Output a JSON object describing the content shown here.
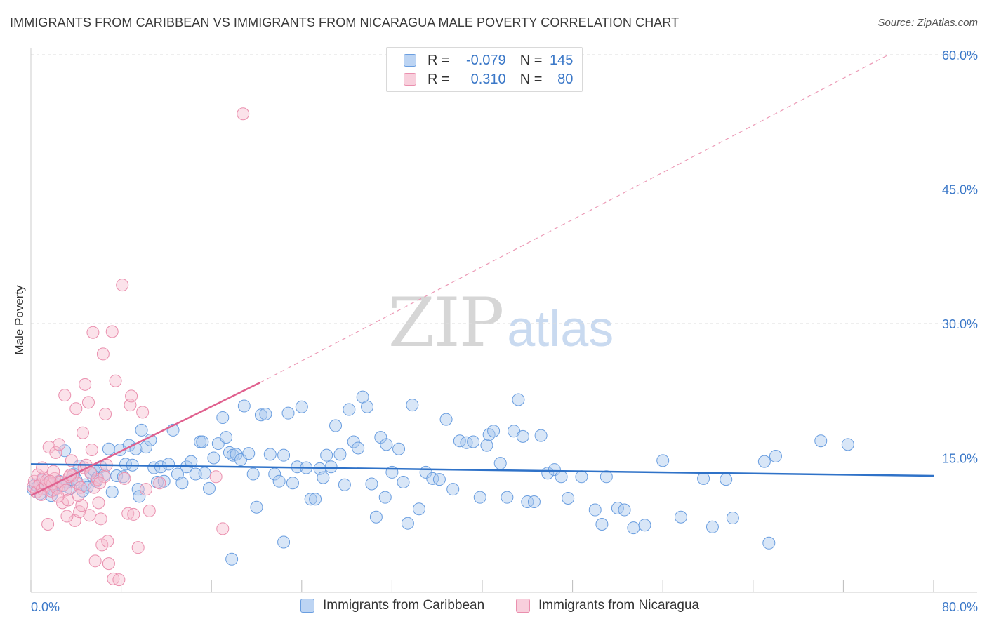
{
  "title": "IMMIGRANTS FROM CARIBBEAN VS IMMIGRANTS FROM NICARAGUA MALE POVERTY CORRELATION CHART",
  "source": "Source: ZipAtlas.com",
  "watermark": {
    "zip": "ZIP",
    "atlas": "atlas"
  },
  "legend": {
    "rows": [
      {
        "r_label": "R =",
        "r_value": "-0.079",
        "n_label": "N =",
        "n_value": "145"
      },
      {
        "r_label": "R =",
        "r_value": "0.310",
        "n_label": "N =",
        "n_value": "80"
      }
    ]
  },
  "bottom_legend": {
    "caribbean": "Immigrants from Caribbean",
    "nicaragua": "Immigrants from Nicaragua"
  },
  "colors": {
    "caribbean_fill": "#a9c8ee",
    "caribbean_stroke": "#6a9ee0",
    "caribbean_line": "#2f72c8",
    "nicaragua_fill": "#f6bfd0",
    "nicaragua_stroke": "#ea8fae",
    "nicaragua_line": "#e0608e",
    "axis_text": "#3b78c8",
    "grid": "#dddddd"
  },
  "chart_data": {
    "type": "scatter",
    "ylabel": "Male Poverty",
    "xlim": [
      0,
      80
    ],
    "ylim": [
      0,
      60
    ],
    "x_tick_labels": [
      "0.0%",
      "80.0%"
    ],
    "y_ticks": [
      15,
      30,
      45,
      60
    ],
    "y_tick_labels": [
      "15.0%",
      "30.0%",
      "45.0%",
      "60.0%"
    ],
    "x_minor_ticks": [
      0,
      8,
      16,
      24,
      32,
      40,
      48,
      56,
      64,
      72,
      80
    ],
    "series": [
      {
        "name": "Immigrants from Caribbean",
        "r": -0.079,
        "n": 145,
        "trend": {
          "x0": 0,
          "y0": 14.3,
          "x1": 80,
          "y1": 13.0
        },
        "points": [
          [
            0.2,
            11.5
          ],
          [
            0.4,
            12.0
          ],
          [
            0.6,
            11.8
          ],
          [
            0.8,
            11.0
          ],
          [
            1.0,
            12.5
          ],
          [
            1.2,
            11.6
          ],
          [
            1.5,
            12.2
          ],
          [
            1.8,
            10.8
          ],
          [
            2.0,
            11.4
          ],
          [
            2.2,
            12.1
          ],
          [
            2.5,
            12.4
          ],
          [
            2.8,
            11.9
          ],
          [
            3.0,
            15.8
          ],
          [
            3.2,
            12.3
          ],
          [
            3.5,
            11.6
          ],
          [
            3.8,
            13.2
          ],
          [
            4.0,
            12.6
          ],
          [
            4.3,
            14.1
          ],
          [
            4.6,
            11.3
          ],
          [
            4.8,
            12.0
          ],
          [
            5.0,
            11.7
          ],
          [
            5.3,
            13.4
          ],
          [
            5.6,
            13.6
          ],
          [
            5.9,
            12.8
          ],
          [
            6.2,
            14.0
          ],
          [
            6.5,
            13.1
          ],
          [
            6.9,
            16.0
          ],
          [
            7.2,
            11.2
          ],
          [
            7.6,
            13.0
          ],
          [
            7.9,
            15.9
          ],
          [
            8.2,
            12.9
          ],
          [
            8.4,
            14.3
          ],
          [
            8.7,
            16.4
          ],
          [
            9.0,
            14.2
          ],
          [
            9.3,
            16.0
          ],
          [
            9.5,
            11.5
          ],
          [
            9.8,
            18.1
          ],
          [
            10.2,
            16.2
          ],
          [
            10.6,
            17.0
          ],
          [
            10.9,
            13.9
          ],
          [
            11.2,
            12.3
          ],
          [
            11.5,
            14.0
          ],
          [
            11.8,
            12.4
          ],
          [
            12.2,
            14.3
          ],
          [
            12.6,
            18.1
          ],
          [
            13.0,
            13.2
          ],
          [
            13.4,
            12.2
          ],
          [
            13.8,
            14.0
          ],
          [
            14.2,
            14.6
          ],
          [
            14.6,
            13.2
          ],
          [
            15.0,
            16.8
          ],
          [
            15.4,
            13.3
          ],
          [
            15.8,
            11.6
          ],
          [
            16.2,
            15.0
          ],
          [
            16.6,
            16.6
          ],
          [
            17.0,
            19.5
          ],
          [
            17.3,
            17.3
          ],
          [
            17.6,
            15.6
          ],
          [
            17.9,
            15.3
          ],
          [
            18.2,
            15.4
          ],
          [
            18.6,
            14.8
          ],
          [
            18.9,
            20.8
          ],
          [
            19.3,
            15.5
          ],
          [
            19.7,
            13.2
          ],
          [
            20.0,
            9.5
          ],
          [
            20.4,
            19.8
          ],
          [
            20.8,
            19.9
          ],
          [
            21.2,
            15.4
          ],
          [
            21.6,
            13.2
          ],
          [
            22.0,
            12.4
          ],
          [
            22.4,
            15.3
          ],
          [
            22.8,
            20.0
          ],
          [
            23.2,
            12.2
          ],
          [
            23.6,
            14.0
          ],
          [
            24.0,
            20.7
          ],
          [
            24.4,
            13.9
          ],
          [
            24.8,
            10.4
          ],
          [
            25.2,
            10.4
          ],
          [
            25.6,
            13.8
          ],
          [
            25.9,
            12.8
          ],
          [
            26.2,
            15.3
          ],
          [
            26.6,
            14.0
          ],
          [
            27.0,
            18.6
          ],
          [
            27.4,
            15.4
          ],
          [
            27.8,
            12.0
          ],
          [
            28.2,
            20.4
          ],
          [
            28.6,
            16.8
          ],
          [
            29.0,
            16.1
          ],
          [
            29.4,
            21.8
          ],
          [
            29.8,
            20.7
          ],
          [
            30.2,
            12.1
          ],
          [
            30.6,
            8.4
          ],
          [
            31.0,
            17.3
          ],
          [
            31.5,
            16.5
          ],
          [
            32.0,
            13.4
          ],
          [
            32.6,
            16.0
          ],
          [
            33.0,
            12.3
          ],
          [
            33.4,
            7.7
          ],
          [
            33.8,
            20.9
          ],
          [
            34.4,
            9.3
          ],
          [
            35.0,
            13.4
          ],
          [
            35.6,
            12.7
          ],
          [
            36.2,
            12.6
          ],
          [
            36.8,
            19.3
          ],
          [
            37.4,
            11.5
          ],
          [
            38.0,
            16.9
          ],
          [
            38.6,
            16.7
          ],
          [
            39.2,
            16.8
          ],
          [
            39.8,
            10.6
          ],
          [
            40.4,
            16.4
          ],
          [
            40.6,
            17.6
          ],
          [
            41.0,
            18.0
          ],
          [
            41.6,
            14.4
          ],
          [
            42.2,
            10.6
          ],
          [
            42.8,
            18.0
          ],
          [
            43.2,
            21.5
          ],
          [
            43.6,
            17.4
          ],
          [
            44.0,
            10.1
          ],
          [
            44.6,
            10.1
          ],
          [
            45.2,
            17.5
          ],
          [
            45.8,
            13.3
          ],
          [
            46.4,
            13.7
          ],
          [
            47.0,
            12.9
          ],
          [
            47.6,
            10.5
          ],
          [
            48.8,
            12.9
          ],
          [
            50.0,
            9.2
          ],
          [
            50.6,
            7.6
          ],
          [
            51.0,
            12.9
          ],
          [
            52.0,
            9.4
          ],
          [
            52.6,
            9.2
          ],
          [
            53.4,
            7.2
          ],
          [
            54.4,
            7.5
          ],
          [
            56.0,
            14.7
          ],
          [
            57.6,
            8.4
          ],
          [
            59.6,
            12.7
          ],
          [
            60.4,
            7.3
          ],
          [
            61.6,
            12.6
          ],
          [
            62.2,
            8.3
          ],
          [
            65.0,
            14.6
          ],
          [
            65.4,
            5.5
          ],
          [
            66.0,
            15.2
          ],
          [
            70.0,
            16.9
          ],
          [
            72.4,
            16.5
          ],
          [
            17.8,
            3.7
          ],
          [
            22.4,
            5.6
          ],
          [
            9.6,
            10.7
          ],
          [
            3.6,
            12.6
          ],
          [
            5.8,
            12.4
          ],
          [
            15.2,
            16.8
          ],
          [
            31.4,
            10.6
          ]
        ]
      },
      {
        "name": "Immigrants from Nicaragua",
        "r": 0.31,
        "n": 80,
        "trend_solid": {
          "x0": 0,
          "y0": 10.8,
          "x1": 20.3,
          "y1": 23.4
        },
        "trend_dashed": {
          "x0": 20.3,
          "y0": 23.4,
          "x1": 76.0,
          "y1": 60.0
        },
        "points": [
          [
            0.2,
            11.8
          ],
          [
            0.3,
            12.4
          ],
          [
            0.5,
            11.2
          ],
          [
            0.6,
            13.1
          ],
          [
            0.8,
            12.0
          ],
          [
            1.0,
            11.5
          ],
          [
            1.1,
            12.8
          ],
          [
            1.3,
            11.9
          ],
          [
            1.4,
            12.5
          ],
          [
            1.6,
            16.2
          ],
          [
            1.8,
            11.3
          ],
          [
            1.9,
            12.1
          ],
          [
            2.1,
            12.7
          ],
          [
            2.2,
            15.6
          ],
          [
            2.3,
            11.6
          ],
          [
            2.5,
            16.5
          ],
          [
            2.6,
            12.3
          ],
          [
            2.8,
            10.0
          ],
          [
            2.9,
            12.0
          ],
          [
            3.0,
            22.0
          ],
          [
            3.1,
            11.4
          ],
          [
            3.3,
            10.3
          ],
          [
            3.4,
            12.9
          ],
          [
            3.6,
            14.7
          ],
          [
            3.7,
            13.0
          ],
          [
            3.9,
            8.0
          ],
          [
            4.0,
            20.5
          ],
          [
            4.1,
            12.2
          ],
          [
            4.3,
            9.0
          ],
          [
            4.4,
            11.7
          ],
          [
            4.6,
            17.8
          ],
          [
            4.7,
            13.9
          ],
          [
            4.8,
            23.2
          ],
          [
            4.9,
            14.2
          ],
          [
            5.1,
            21.2
          ],
          [
            5.2,
            8.6
          ],
          [
            5.4,
            15.9
          ],
          [
            5.5,
            29.0
          ],
          [
            5.6,
            11.7
          ],
          [
            5.7,
            3.5
          ],
          [
            5.9,
            12.6
          ],
          [
            6.0,
            10.0
          ],
          [
            6.2,
            8.2
          ],
          [
            6.3,
            5.3
          ],
          [
            6.4,
            26.6
          ],
          [
            6.5,
            12.9
          ],
          [
            6.6,
            19.9
          ],
          [
            6.8,
            5.7
          ],
          [
            6.9,
            3.2
          ],
          [
            7.2,
            29.1
          ],
          [
            7.3,
            1.5
          ],
          [
            7.5,
            23.6
          ],
          [
            8.1,
            34.3
          ],
          [
            8.3,
            12.7
          ],
          [
            8.6,
            8.8
          ],
          [
            8.8,
            20.9
          ],
          [
            8.9,
            21.9
          ],
          [
            9.1,
            8.7
          ],
          [
            9.5,
            5.0
          ],
          [
            9.9,
            20.1
          ],
          [
            10.2,
            11.5
          ],
          [
            10.5,
            9.1
          ],
          [
            11.4,
            12.2
          ],
          [
            17.0,
            7.1
          ],
          [
            18.8,
            53.4
          ],
          [
            1.0,
            13.9
          ],
          [
            1.5,
            7.6
          ],
          [
            2.4,
            10.7
          ],
          [
            3.2,
            8.5
          ],
          [
            4.5,
            9.7
          ],
          [
            5.3,
            13.3
          ],
          [
            6.1,
            12.2
          ],
          [
            6.7,
            14.2
          ],
          [
            3.5,
            13.1
          ],
          [
            2.0,
            13.5
          ],
          [
            0.9,
            10.9
          ],
          [
            4.2,
            10.8
          ],
          [
            1.7,
            12.4
          ],
          [
            16.4,
            12.9
          ],
          [
            7.8,
            1.4
          ]
        ]
      }
    ]
  }
}
